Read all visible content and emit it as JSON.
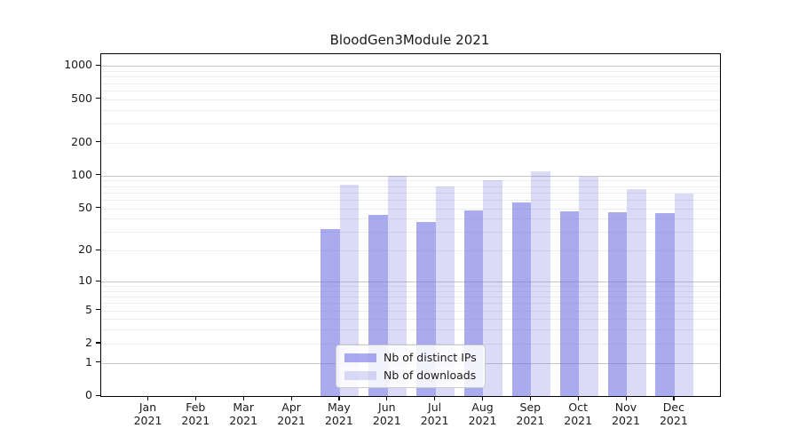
{
  "figure_title": "BloodGen3Module 2021",
  "chart_data": {
    "type": "bar",
    "title": "BloodGen3Module 2021",
    "categories": [
      "Jan 2021",
      "Feb 2021",
      "Mar 2021",
      "Apr 2021",
      "May 2021",
      "Jun 2021",
      "Jul 2021",
      "Aug 2021",
      "Sep 2021",
      "Oct 2021",
      "Nov 2021",
      "Dec 2021"
    ],
    "series": [
      {
        "name": "Nb of distinct IPs",
        "color": "rgba(113,113,229,0.60)",
        "values": [
          0,
          0,
          0,
          0,
          32,
          43,
          37,
          48,
          57,
          47,
          46,
          45
        ]
      },
      {
        "name": "Nb of downloads",
        "color": "rgba(113,113,229,0.25)",
        "values": [
          0,
          0,
          0,
          0,
          82,
          100,
          79,
          90,
          110,
          97,
          75,
          68
        ]
      }
    ],
    "xlabel": "",
    "ylabel": "",
    "yscale": "log10(1+v)",
    "ylim": [
      0,
      1281
    ],
    "yticks": [
      0,
      1,
      2,
      5,
      10,
      20,
      50,
      100,
      200,
      500,
      1000
    ],
    "grid": {
      "major": [
        1,
        10,
        100,
        1000
      ],
      "minor": [
        2,
        3,
        4,
        5,
        6,
        7,
        8,
        9,
        20,
        30,
        40,
        50,
        60,
        70,
        80,
        90,
        200,
        300,
        400,
        500,
        600,
        700,
        800,
        900
      ]
    },
    "legend": {
      "position": "lower center",
      "entries": [
        "Nb of distinct IPs",
        "Nb of downloads"
      ]
    }
  },
  "colors": {
    "series_ips": "#a9a9ee",
    "series_downloads": "#dbdbf8",
    "grid_major": "#c7c7c7",
    "grid_minor": "#ededed",
    "axis": "#000000",
    "text": "#1a1a1a",
    "background": "#ffffff"
  }
}
